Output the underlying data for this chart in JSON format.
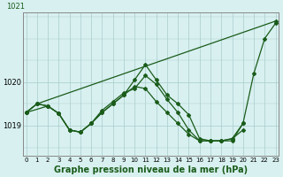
{
  "title": "Graphe pression niveau de la mer (hPa)",
  "xlabel_fontsize": 7.0,
  "background_color": "#d8f0f0",
  "grid_color": "#aacccc",
  "line_color": "#1a5c1a",
  "x_ticks": [
    0,
    1,
    2,
    3,
    4,
    5,
    6,
    7,
    8,
    9,
    10,
    11,
    12,
    13,
    14,
    15,
    16,
    17,
    18,
    19,
    20,
    21,
    22,
    23
  ],
  "y_ticks": [
    1019,
    1020
  ],
  "ylim": [
    1018.3,
    1021.6
  ],
  "xlim": [
    -0.3,
    23.3
  ],
  "series": [
    [
      1019.3,
      1019.5,
      null,
      null,
      null,
      null,
      null,
      null,
      null,
      null,
      null,
      null,
      null,
      null,
      null,
      null,
      null,
      null,
      null,
      null,
      null,
      null,
      null,
      1021.4
    ],
    [
      1019.3,
      null,
      1019.45,
      1019.28,
      1018.9,
      1018.85,
      1019.05,
      1019.35,
      1019.55,
      1019.75,
      1019.85,
      1020.15,
      1019.95,
      1019.6,
      1019.3,
      1018.9,
      1018.65,
      1018.65,
      1018.65,
      1018.65,
      1019.05,
      1020.2,
      1021.0,
      1021.35
    ],
    [
      1019.3,
      1019.5,
      1019.45,
      1019.28,
      1018.9,
      1018.85,
      1019.05,
      1019.3,
      1019.5,
      1019.7,
      1020.05,
      1020.4,
      1020.05,
      1019.7,
      1019.5,
      1019.25,
      1018.7,
      1018.65,
      1018.65,
      1018.7,
      1019.05,
      null,
      null,
      null
    ],
    [
      1019.3,
      1019.5,
      1019.45,
      1019.28,
      1018.9,
      1018.85,
      1019.05,
      1019.3,
      1019.5,
      1019.7,
      1019.9,
      1019.85,
      1019.55,
      1019.3,
      1019.05,
      1018.8,
      1018.65,
      1018.65,
      1018.65,
      1018.7,
      1018.9,
      null,
      null,
      null
    ]
  ]
}
